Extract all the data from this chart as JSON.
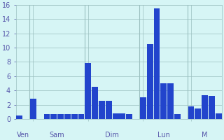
{
  "bars": [
    0.5,
    0.0,
    2.8,
    0.0,
    0.7,
    0.7,
    0.7,
    0.7,
    0.7,
    0.7,
    7.8,
    4.5,
    2.5,
    2.5,
    0.8,
    0.8,
    0.7,
    0.0,
    3.0,
    10.5,
    15.5,
    5.0,
    5.0,
    0.7,
    0.0,
    1.8,
    1.5,
    3.3,
    3.2,
    0.8
  ],
  "day_labels": [
    "Ven",
    "Sam",
    "Dim",
    "Lun",
    "M"
  ],
  "day_label_bar_index": [
    0,
    2,
    10,
    18,
    25
  ],
  "day_vline_positions": [
    2,
    10,
    18,
    25
  ],
  "bar_color": "#2244cc",
  "background_color": "#d6f5f5",
  "grid_color": "#9bbfbf",
  "text_color": "#5555aa",
  "ylim": [
    0,
    16
  ],
  "yticks": [
    0,
    2,
    4,
    6,
    8,
    10,
    12,
    14,
    16
  ],
  "figwidth": 3.2,
  "figheight": 2.0,
  "dpi": 100
}
